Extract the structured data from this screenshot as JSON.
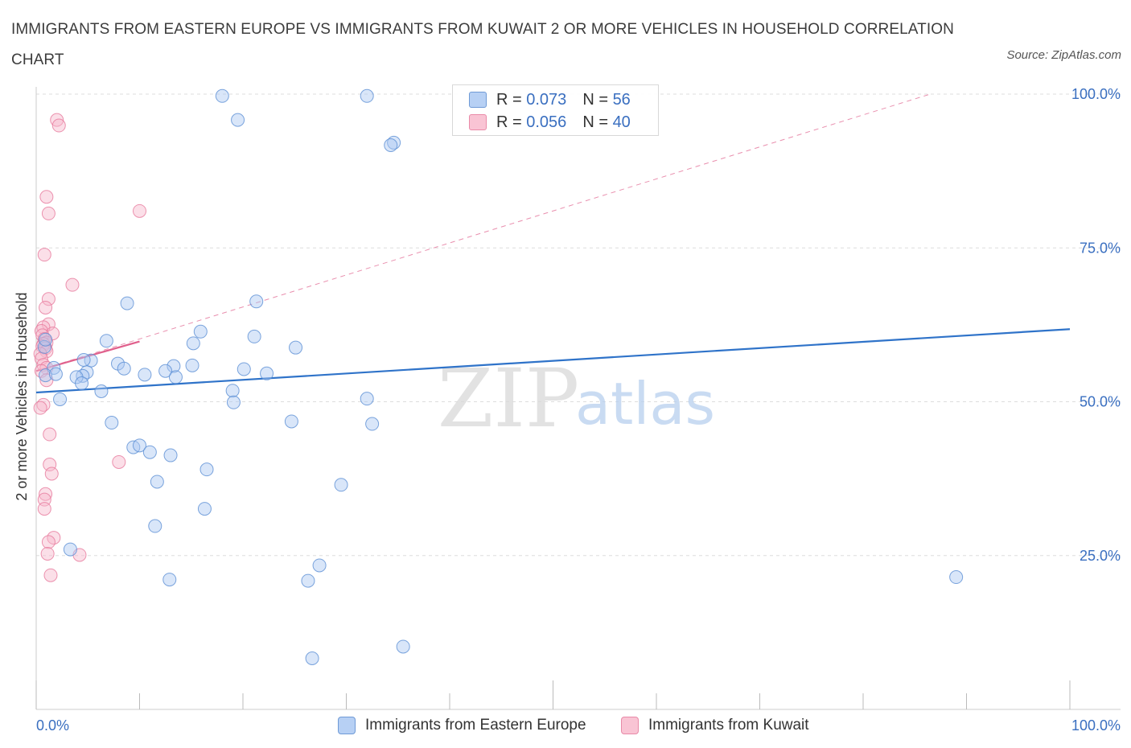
{
  "title": "IMMIGRANTS FROM EASTERN EUROPE VS IMMIGRANTS FROM KUWAIT 2 OR MORE VEHICLES IN HOUSEHOLD CORRELATION CHART",
  "source": "Source: ZipAtlas.com",
  "watermark": {
    "zip": "ZIP",
    "atlas": "atlas"
  },
  "legend": {
    "r_label": "R =",
    "n_label": "N =",
    "series": [
      {
        "r": "0.073",
        "n": "56"
      },
      {
        "r": "0.056",
        "n": "40"
      }
    ]
  },
  "colors": {
    "blue_fill": "#aac8f2",
    "blue_stroke": "#5b8fd4",
    "blue_line": "#2f73c9",
    "pink_fill": "#f7b8cc",
    "pink_stroke": "#e7799c",
    "pink_line": "#e0608c",
    "axis_text": "#3a6fc0"
  },
  "chart_data": {
    "type": "scatter",
    "title": "IMMIGRANTS FROM EASTERN EUROPE VS IMMIGRANTS FROM KUWAIT 2 OR MORE VEHICLES IN HOUSEHOLD CORRELATION CHART",
    "xlabel": "",
    "ylabel": "2 or more Vehicles in Household",
    "xlim": [
      0,
      100
    ],
    "ylim": [
      0,
      100
    ],
    "x_tick_labels": [
      "0.0%",
      "100.0%"
    ],
    "y_ticks": [
      25,
      50,
      75,
      100
    ],
    "y_tick_labels": [
      "25.0%",
      "50.0%",
      "75.0%",
      "100.0%"
    ],
    "grid": true,
    "series": [
      {
        "name": "Immigrants from Eastern Europe",
        "color": "#aac8f2",
        "trend": {
          "x": [
            0,
            100
          ],
          "y": [
            51.5,
            61.8
          ]
        },
        "points": [
          [
            18.0,
            99.7
          ],
          [
            32.0,
            99.7
          ],
          [
            19.5,
            95.8
          ],
          [
            34.6,
            92.1
          ],
          [
            34.3,
            91.7
          ],
          [
            21.3,
            66.3
          ],
          [
            8.8,
            66.0
          ],
          [
            15.9,
            61.4
          ],
          [
            21.1,
            60.6
          ],
          [
            6.8,
            59.9
          ],
          [
            25.1,
            58.8
          ],
          [
            0.8,
            58.9
          ],
          [
            5.3,
            56.7
          ],
          [
            7.9,
            56.2
          ],
          [
            13.3,
            55.8
          ],
          [
            15.1,
            55.9
          ],
          [
            1.7,
            55.5
          ],
          [
            8.5,
            55.4
          ],
          [
            20.1,
            55.3
          ],
          [
            12.5,
            55.0
          ],
          [
            4.9,
            54.8
          ],
          [
            22.3,
            54.6
          ],
          [
            0.9,
            54.3
          ],
          [
            1.9,
            54.5
          ],
          [
            10.5,
            54.4
          ],
          [
            4.5,
            54.2
          ],
          [
            3.9,
            54.0
          ],
          [
            13.5,
            54.0
          ],
          [
            4.4,
            53.0
          ],
          [
            19.0,
            51.8
          ],
          [
            6.3,
            51.7
          ],
          [
            2.3,
            50.4
          ],
          [
            19.1,
            49.9
          ],
          [
            32.0,
            50.5
          ],
          [
            7.3,
            46.6
          ],
          [
            24.7,
            46.8
          ],
          [
            32.5,
            46.4
          ],
          [
            9.4,
            42.6
          ],
          [
            10.0,
            42.9
          ],
          [
            11.0,
            41.8
          ],
          [
            13.0,
            41.3
          ],
          [
            16.5,
            39.0
          ],
          [
            11.7,
            37.0
          ],
          [
            29.5,
            36.5
          ],
          [
            16.3,
            32.6
          ],
          [
            11.5,
            29.8
          ],
          [
            3.3,
            26.0
          ],
          [
            27.4,
            23.4
          ],
          [
            12.9,
            21.1
          ],
          [
            26.3,
            20.9
          ],
          [
            89.0,
            21.5
          ],
          [
            35.5,
            10.2
          ],
          [
            26.7,
            8.3
          ],
          [
            4.6,
            56.8
          ],
          [
            15.2,
            59.5
          ],
          [
            0.9,
            60.1
          ]
        ]
      },
      {
        "name": "Immigrants from Kuwait",
        "color": "#f7b8cc",
        "trend": {
          "x": [
            0,
            10
          ],
          "y": [
            55.0,
            59.8
          ]
        },
        "extended_trend": {
          "x": [
            0,
            86.5
          ],
          "y": [
            55.0,
            100
          ]
        },
        "points": [
          [
            2.0,
            95.8
          ],
          [
            2.2,
            94.9
          ],
          [
            1.0,
            83.3
          ],
          [
            1.2,
            80.6
          ],
          [
            10.0,
            81.0
          ],
          [
            0.8,
            73.9
          ],
          [
            3.5,
            69.0
          ],
          [
            1.2,
            66.7
          ],
          [
            0.9,
            65.3
          ],
          [
            1.2,
            62.6
          ],
          [
            0.7,
            62.1
          ],
          [
            0.5,
            61.5
          ],
          [
            1.6,
            61.1
          ],
          [
            0.6,
            60.8
          ],
          [
            0.8,
            60.2
          ],
          [
            1.0,
            59.6
          ],
          [
            0.7,
            59.4
          ],
          [
            0.6,
            59.0
          ],
          [
            0.9,
            58.7
          ],
          [
            1.0,
            58.2
          ],
          [
            0.4,
            57.8
          ],
          [
            0.5,
            57.0
          ],
          [
            0.7,
            56.0
          ],
          [
            1.0,
            55.5
          ],
          [
            0.5,
            55.0
          ],
          [
            1.0,
            53.5
          ],
          [
            0.7,
            49.5
          ],
          [
            0.4,
            49.0
          ],
          [
            1.3,
            44.7
          ],
          [
            8.0,
            40.2
          ],
          [
            1.3,
            39.8
          ],
          [
            1.5,
            38.3
          ],
          [
            0.9,
            35.0
          ],
          [
            0.8,
            34.1
          ],
          [
            0.8,
            32.6
          ],
          [
            1.7,
            27.9
          ],
          [
            1.2,
            27.2
          ],
          [
            1.1,
            25.3
          ],
          [
            4.2,
            25.1
          ],
          [
            1.4,
            21.8
          ]
        ]
      }
    ]
  }
}
